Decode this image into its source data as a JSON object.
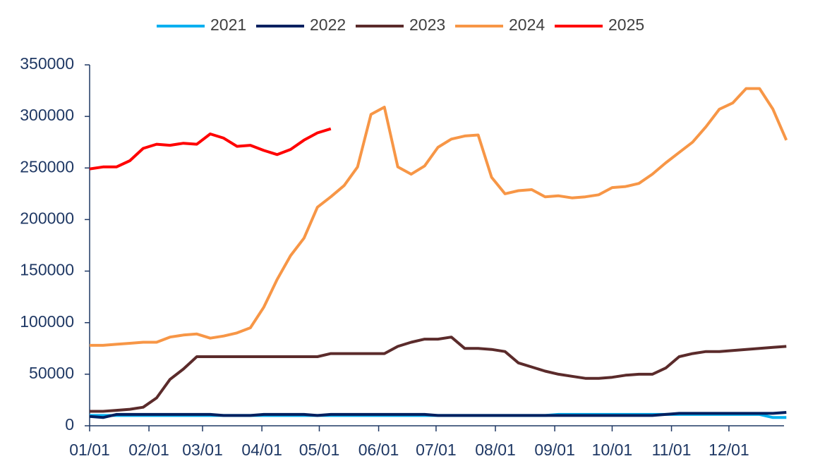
{
  "chart_data": {
    "type": "line",
    "x": [
      0,
      7,
      14,
      21,
      28,
      35,
      42,
      49,
      56,
      63,
      70,
      77,
      84,
      91,
      98,
      105,
      112,
      119,
      126,
      133,
      140,
      147,
      154,
      161,
      168,
      175,
      182,
      189,
      196,
      203,
      210,
      217,
      224,
      231,
      238,
      245,
      252,
      259,
      266,
      273,
      280,
      287,
      294,
      301,
      308,
      315,
      322,
      329,
      336,
      343,
      350,
      357,
      364
    ],
    "xlim": [
      0,
      365
    ],
    "xticks": [
      {
        "value": 0,
        "label": "01/01"
      },
      {
        "value": 31,
        "label": "02/01"
      },
      {
        "value": 59,
        "label": "03/01"
      },
      {
        "value": 90,
        "label": "04/01"
      },
      {
        "value": 120,
        "label": "05/01"
      },
      {
        "value": 151,
        "label": "06/01"
      },
      {
        "value": 181,
        "label": "07/01"
      },
      {
        "value": 212,
        "label": "08/01"
      },
      {
        "value": 243,
        "label": "09/01"
      },
      {
        "value": 273,
        "label": "10/01"
      },
      {
        "value": 304,
        "label": "11/01"
      },
      {
        "value": 334,
        "label": "12/01"
      }
    ],
    "ylim": [
      0,
      350000
    ],
    "yticks": [
      0,
      50000,
      100000,
      150000,
      200000,
      250000,
      300000,
      350000
    ],
    "grid": false,
    "legend": "top",
    "series": [
      {
        "name": "2021",
        "color": "#00b0f0",
        "values": [
          10000,
          10000,
          10000,
          10000,
          10000,
          10000,
          10000,
          10000,
          10000,
          10000,
          10000,
          10000,
          10000,
          10000,
          10000,
          10000,
          10000,
          10000,
          10000,
          10000,
          10000,
          10000,
          10000,
          10000,
          10000,
          10000,
          10000,
          10000,
          10000,
          10000,
          10000,
          10000,
          10000,
          10000,
          10000,
          11000,
          11000,
          11000,
          11000,
          11000,
          11000,
          11000,
          11000,
          11000,
          11000,
          11000,
          11000,
          11000,
          11000,
          11000,
          11000,
          8000,
          8000
        ]
      },
      {
        "name": "2022",
        "color": "#002060",
        "values": [
          9000,
          8000,
          11000,
          11000,
          11000,
          11000,
          11000,
          11000,
          11000,
          11000,
          10000,
          10000,
          10000,
          11000,
          11000,
          11000,
          11000,
          10000,
          11000,
          11000,
          11000,
          11000,
          11000,
          11000,
          11000,
          11000,
          10000,
          10000,
          10000,
          10000,
          10000,
          10000,
          10000,
          10000,
          10000,
          10000,
          10000,
          10000,
          10000,
          10000,
          10000,
          10000,
          10000,
          11000,
          12000,
          12000,
          12000,
          12000,
          12000,
          12000,
          12000,
          12000,
          13000
        ]
      },
      {
        "name": "2023",
        "color": "#5b2b2b",
        "values": [
          14000,
          14000,
          15000,
          16000,
          18000,
          27000,
          45000,
          55000,
          67000,
          67000,
          67000,
          67000,
          67000,
          67000,
          67000,
          67000,
          67000,
          67000,
          70000,
          70000,
          70000,
          70000,
          70000,
          77000,
          81000,
          84000,
          84000,
          86000,
          75000,
          75000,
          74000,
          72000,
          61000,
          57000,
          53000,
          50000,
          48000,
          46000,
          46000,
          47000,
          49000,
          50000,
          50000,
          56000,
          67000,
          70000,
          72000,
          72000,
          73000,
          74000,
          75000,
          76000,
          77000
        ]
      },
      {
        "name": "2024",
        "color": "#f79646",
        "values": [
          78000,
          78000,
          79000,
          80000,
          81000,
          81000,
          86000,
          88000,
          89000,
          85000,
          87000,
          90000,
          95000,
          115000,
          142000,
          165000,
          182000,
          212000,
          222000,
          233000,
          251000,
          302000,
          309000,
          251000,
          244000,
          252000,
          270000,
          278000,
          281000,
          282000,
          241000,
          225000,
          228000,
          229000,
          222000,
          223000,
          221000,
          222000,
          224000,
          231000,
          232000,
          235000,
          244000,
          255000,
          265000,
          275000,
          290000,
          307000,
          313000,
          327000,
          327000,
          307000,
          277000
        ]
      },
      {
        "name": "2025",
        "color": "#ff0000",
        "values": [
          249000,
          251000,
          251000,
          257000,
          269000,
          273000,
          272000,
          274000,
          273000,
          283000,
          279000,
          271000,
          272000,
          267000,
          263000,
          268000,
          277000,
          284000,
          288000,
          null,
          null,
          null,
          null,
          null,
          null,
          null,
          null,
          null,
          null,
          null,
          null,
          null,
          null,
          null,
          null,
          null,
          null,
          null,
          null,
          null,
          null,
          null,
          null,
          null,
          null,
          null,
          null,
          null,
          null,
          null,
          null,
          null,
          null
        ]
      }
    ]
  }
}
